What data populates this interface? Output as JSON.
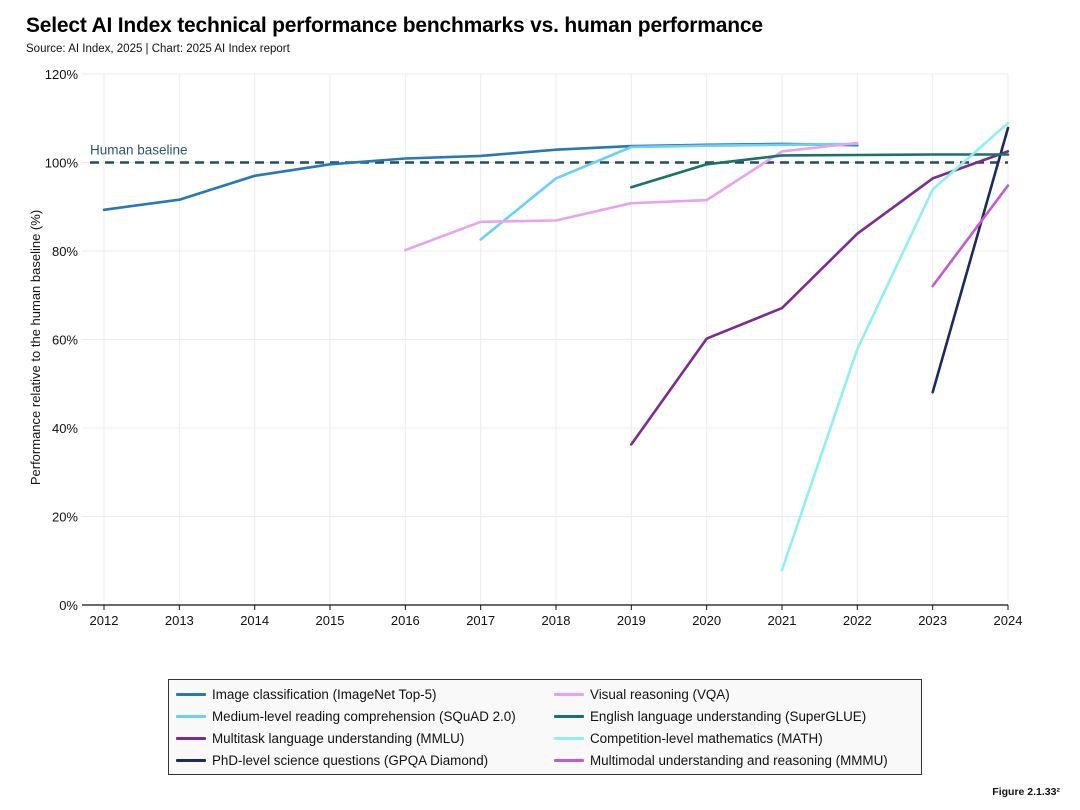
{
  "title": "Select AI Index technical performance benchmarks vs. human performance",
  "subtitle": "Source: AI Index, 2025 | Chart: 2025 AI Index report",
  "figure_label": "Figure 2.1.33²",
  "chart_data": {
    "type": "line",
    "title": "Select AI Index technical performance benchmarks vs. human performance",
    "xlabel": "",
    "ylabel": "Performance relative to the human baseline (%)",
    "x_ticks": [
      2012,
      2013,
      2014,
      2015,
      2016,
      2017,
      2018,
      2019,
      2020,
      2021,
      2022,
      2023,
      2024
    ],
    "xlim": [
      2012,
      2024
    ],
    "ylim": [
      0,
      120
    ],
    "y_ticks": [
      0,
      20,
      40,
      60,
      80,
      100,
      120
    ],
    "y_tick_labels": [
      "0%",
      "20%",
      "40%",
      "60%",
      "80%",
      "100%",
      "120%"
    ],
    "grid": true,
    "baseline": {
      "label": "Human baseline",
      "value": 100,
      "color": "#1f4e5f"
    },
    "legend_position": "bottom",
    "series": [
      {
        "name": "Image classification (ImageNet Top-5)",
        "color": "#2878b5",
        "points": [
          [
            2012,
            89.3
          ],
          [
            2013,
            91.6
          ],
          [
            2014,
            97.0
          ],
          [
            2015,
            99.6
          ],
          [
            2016,
            100.9
          ],
          [
            2017,
            101.5
          ],
          [
            2018,
            102.9
          ],
          [
            2019,
            103.7
          ],
          [
            2020,
            104.0
          ],
          [
            2021,
            104.2
          ],
          [
            2022,
            103.9
          ]
        ]
      },
      {
        "name": "Medium-level reading comprehension (SQuAD 2.0)",
        "color": "#6ccff6",
        "points": [
          [
            2017,
            82.6
          ],
          [
            2018,
            96.4
          ],
          [
            2019,
            103.5
          ],
          [
            2020,
            103.8
          ],
          [
            2021,
            104.0
          ],
          [
            2022,
            104.2
          ]
        ]
      },
      {
        "name": "Multitask language understanding (MMLU)",
        "color": "#7b2d8e",
        "points": [
          [
            2019,
            36.3
          ],
          [
            2020,
            60.2
          ],
          [
            2021,
            67.1
          ],
          [
            2022,
            83.9
          ],
          [
            2023,
            96.4
          ],
          [
            2024,
            102.5
          ]
        ]
      },
      {
        "name": "PhD-level science questions (GPQA Diamond)",
        "color": "#1a2b5c",
        "points": [
          [
            2023,
            48.1
          ],
          [
            2024,
            107.8
          ]
        ]
      },
      {
        "name": "Visual reasoning (VQA)",
        "color": "#e8a3f0",
        "points": [
          [
            2016,
            80.2
          ],
          [
            2017,
            86.6
          ],
          [
            2018,
            86.9
          ],
          [
            2019,
            90.8
          ],
          [
            2020,
            91.5
          ],
          [
            2021,
            102.5
          ],
          [
            2022,
            104.4
          ]
        ]
      },
      {
        "name": "English language understanding (SuperGLUE)",
        "color": "#1a7268",
        "points": [
          [
            2019,
            94.4
          ],
          [
            2020,
            99.6
          ],
          [
            2021,
            101.6
          ],
          [
            2022,
            101.7
          ],
          [
            2023,
            101.8
          ],
          [
            2024,
            101.8
          ]
        ]
      },
      {
        "name": "Competition-level mathematics (MATH)",
        "color": "#8ff0f0",
        "points": [
          [
            2021,
            7.9
          ],
          [
            2022,
            57.8
          ],
          [
            2023,
            93.9
          ],
          [
            2024,
            108.9
          ]
        ]
      },
      {
        "name": "Multimodal understanding and reasoning (MMMU)",
        "color": "#c45ad6",
        "points": [
          [
            2023,
            72.1
          ],
          [
            2024,
            94.8
          ]
        ]
      }
    ]
  },
  "legend": {
    "items": [
      {
        "label": "Image classification (ImageNet Top-5)",
        "color": "#2878b5"
      },
      {
        "label": "Visual reasoning (VQA)",
        "color": "#e8a3f0"
      },
      {
        "label": "Medium-level reading comprehension (SQuAD 2.0)",
        "color": "#6ccff6"
      },
      {
        "label": "English language understanding (SuperGLUE)",
        "color": "#1a7268"
      },
      {
        "label": "Multitask language understanding (MMLU)",
        "color": "#7b2d8e"
      },
      {
        "label": "Competition-level mathematics (MATH)",
        "color": "#8ff0f0"
      },
      {
        "label": "PhD-level science questions (GPQA Diamond)",
        "color": "#1a2b5c"
      },
      {
        "label": "Multimodal understanding and reasoning (MMMU)",
        "color": "#c45ad6"
      }
    ]
  }
}
